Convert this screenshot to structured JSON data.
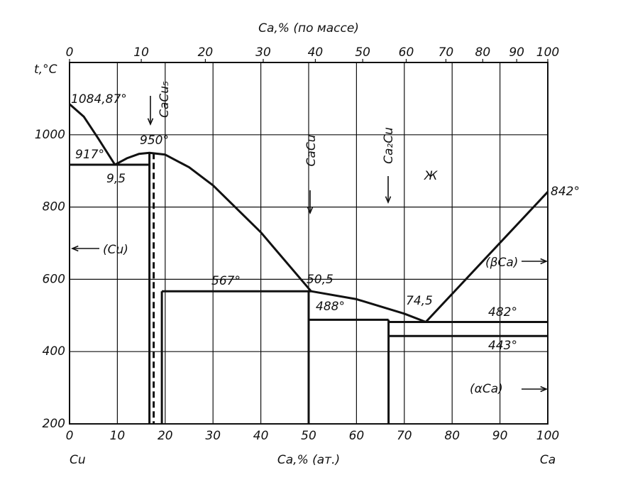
{
  "chart_data": {
    "type": "phase-diagram",
    "xlabel": "Ca,% (ат.)",
    "x2label": "Ca,% (по массе)",
    "ylabel": "t,°C",
    "components": [
      "Cu",
      "Ca"
    ],
    "xlim": [
      0,
      100
    ],
    "xticks": [
      0,
      10,
      20,
      30,
      40,
      50,
      60,
      70,
      80,
      90,
      100
    ],
    "x2ticks": [
      {
        "value": 0,
        "label": "0"
      },
      {
        "value": 15,
        "label": "10"
      },
      {
        "value": 28.4,
        "label": "20"
      },
      {
        "value": 40.5,
        "label": "30"
      },
      {
        "value": 51.4,
        "label": "40"
      },
      {
        "value": 61.3,
        "label": "50"
      },
      {
        "value": 70.4,
        "label": "60"
      },
      {
        "value": 78.7,
        "label": "70"
      },
      {
        "value": 86.4,
        "label": "80"
      },
      {
        "value": 93.5,
        "label": "90"
      },
      {
        "value": 100,
        "label": "100"
      }
    ],
    "ylim": [
      200,
      1200
    ],
    "yticks": [
      200,
      400,
      600,
      800,
      1000
    ],
    "grid": true,
    "color": "#111111",
    "lines": [
      {
        "style": "solid",
        "x": [
          0,
          3,
          6,
          9.5,
          12,
          14.5,
          16.7,
          20,
          25,
          30,
          40,
          50.5,
          60,
          70,
          74.5,
          100
        ],
        "y": [
          1084.87,
          1050,
          990,
          917,
          935,
          947,
          950,
          945,
          910,
          860,
          730,
          567,
          545,
          505,
          482,
          842
        ]
      },
      {
        "style": "solid",
        "x": [
          0,
          16.7
        ],
        "y": [
          917,
          917
        ]
      },
      {
        "style": "solid",
        "x": [
          16.7,
          16.7
        ],
        "y": [
          950,
          200
        ]
      },
      {
        "style": "dashed",
        "x": [
          17.6,
          17.6
        ],
        "y": [
          950,
          200
        ]
      },
      {
        "style": "solid",
        "x": [
          19.3,
          19.3
        ],
        "y": [
          567,
          200
        ]
      },
      {
        "style": "solid",
        "x": [
          19.3,
          50.5
        ],
        "y": [
          567,
          567
        ]
      },
      {
        "style": "solid",
        "x": [
          50,
          50
        ],
        "y": [
          567,
          200
        ]
      },
      {
        "style": "solid",
        "x": [
          50,
          66.7
        ],
        "y": [
          488,
          488
        ]
      },
      {
        "style": "solid",
        "x": [
          66.7,
          66.7
        ],
        "y": [
          488,
          200
        ]
      },
      {
        "style": "solid",
        "x": [
          66.7,
          100
        ],
        "y": [
          482,
          482
        ]
      },
      {
        "style": "solid",
        "x": [
          66.7,
          100
        ],
        "y": [
          443,
          443
        ]
      }
    ],
    "annotations": [
      "1084,87°",
      "917°",
      "9,5",
      "950°",
      "567°",
      "50,5",
      "488°",
      "74,5",
      "482°",
      "443°",
      "842°",
      "(Cu)",
      "(βCa)",
      "(αCa)",
      "Ж",
      "CaCu₅",
      "CaCu",
      "Ca₂Cu"
    ]
  }
}
